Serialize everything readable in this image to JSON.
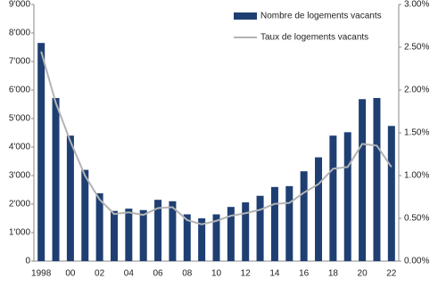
{
  "chart_data": {
    "type": "bar_line",
    "categories": [
      "1998",
      null,
      "00",
      null,
      "02",
      null,
      "04",
      null,
      "06",
      null,
      "08",
      null,
      "10",
      null,
      "12",
      null,
      "14",
      null,
      "16",
      null,
      "18",
      null,
      "20",
      null,
      "22"
    ],
    "series": [
      {
        "name": "Nombre de logements vacants",
        "type": "bar",
        "color": "#1f3f73",
        "values": [
          7650,
          5720,
          4400,
          3200,
          2380,
          1760,
          1840,
          1790,
          2150,
          2100,
          1640,
          1500,
          1640,
          1900,
          2060,
          2290,
          2600,
          2630,
          3150,
          3640,
          4400,
          4520,
          5680,
          5720,
          4740
        ]
      },
      {
        "name": "Taux de logements vacants",
        "type": "line",
        "axis": "y2",
        "color": "#b3b3b3",
        "values": [
          2.45,
          1.85,
          1.4,
          1.0,
          0.72,
          0.55,
          0.57,
          0.54,
          0.62,
          0.63,
          0.48,
          0.43,
          0.47,
          0.53,
          0.56,
          0.6,
          0.67,
          0.68,
          0.8,
          0.9,
          1.08,
          1.1,
          1.37,
          1.35,
          1.1
        ]
      }
    ],
    "ylim": [
      0,
      9000
    ],
    "yticks": [
      0,
      {
        "value": 1000,
        "label": "1'000"
      },
      {
        "value": 2000,
        "label": "2'000"
      },
      {
        "value": 3000,
        "label": "3'000"
      },
      {
        "value": 4000,
        "label": "4'000"
      },
      {
        "value": 5000,
        "label": "5'000"
      },
      {
        "value": 6000,
        "label": "6'000"
      },
      {
        "value": 7000,
        "label": "7'000"
      },
      {
        "value": 8000,
        "label": "8'000"
      },
      {
        "value": 9000,
        "label": "9'000"
      }
    ],
    "y2lim": [
      0,
      3
    ],
    "y2ticks": [
      {
        "value": 0,
        "label": "0.00%"
      },
      {
        "value": 0.5,
        "label": "0.50%"
      },
      {
        "value": 1,
        "label": "1.00%"
      },
      {
        "value": 1.5,
        "label": "1.50%"
      },
      {
        "value": 2,
        "label": "2.00%"
      },
      {
        "value": 2.5,
        "label": "2.50%"
      },
      {
        "value": 3,
        "label": "3.00%"
      }
    ],
    "legend": "top-right"
  }
}
